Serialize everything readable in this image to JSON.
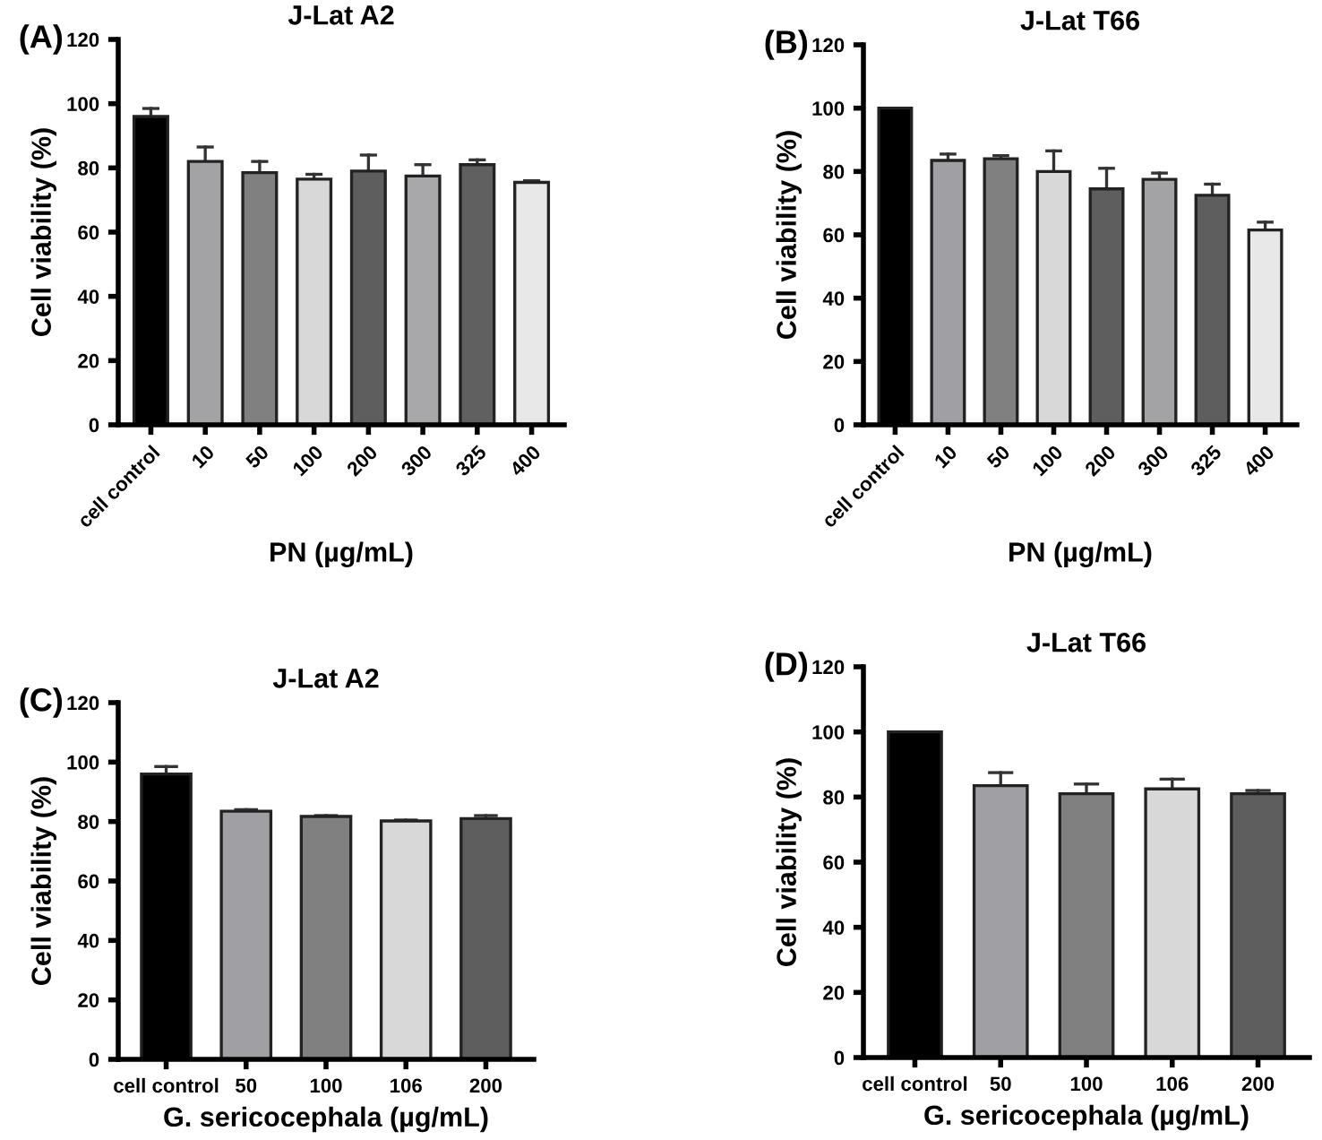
{
  "chart_data": [
    {
      "type": "bar",
      "title": "J-Lat A2",
      "xlabel": "PN (µg/mL)",
      "ylabel": "Cell viability (%)",
      "annotations": [
        "(A)"
      ],
      "categories": [
        "cell control",
        "10",
        "50",
        "100",
        "200",
        "300",
        "325",
        "400"
      ],
      "values": [
        96,
        82,
        78.5,
        76.5,
        79,
        77.5,
        81,
        75.5
      ],
      "errors": [
        [
          96,
          98.5
        ],
        [
          82,
          86.5
        ],
        [
          78.5,
          82
        ],
        [
          76.5,
          78
        ],
        [
          79,
          84
        ],
        [
          77.5,
          81
        ],
        [
          81,
          82.5
        ],
        [
          75.5,
          76
        ]
      ],
      "colors": [
        "#000000",
        "#a3a3a6",
        "#808080",
        "#d8d8d8",
        "#5e5e5e",
        "#a8a8ab",
        "#606060",
        "#e8e8e8"
      ],
      "ylim": [
        0,
        120
      ],
      "yticks": [
        0,
        20,
        40,
        60,
        80,
        100,
        120
      ],
      "grid": false
    },
    {
      "type": "bar",
      "title": "J-Lat T66",
      "xlabel": "PN (µg/mL)",
      "ylabel": "Cell viability (%)",
      "annotations": [
        "(B)"
      ],
      "categories": [
        "cell control",
        "10",
        "50",
        "100",
        "200",
        "300",
        "325",
        "400"
      ],
      "values": [
        100,
        83.5,
        84,
        80,
        74.5,
        77.5,
        72.5,
        61.5
      ],
      "errors": [
        null,
        [
          83.5,
          85.5
        ],
        [
          84,
          85
        ],
        [
          80,
          86.5
        ],
        [
          74.5,
          81
        ],
        [
          77.5,
          79.5
        ],
        [
          72.5,
          76
        ],
        [
          61.5,
          64
        ]
      ],
      "colors": [
        "#000000",
        "#a0a0a4",
        "#808080",
        "#d8d8d8",
        "#5e5e5e",
        "#a3a3a6",
        "#5e5e5e",
        "#e8e8e8"
      ],
      "ylim": [
        0,
        120
      ],
      "yticks": [
        0,
        20,
        40,
        60,
        80,
        100,
        120
      ],
      "grid": false
    },
    {
      "type": "bar",
      "title": "J-Lat A2",
      "xlabel": "G. sericocephala (µg/mL)",
      "ylabel": "Cell viability (%)",
      "annotations": [
        "(C)"
      ],
      "categories": [
        "cell control",
        "50",
        "100",
        "106",
        "200"
      ],
      "values": [
        96,
        83.5,
        81.7,
        80.2,
        81
      ],
      "errors": [
        [
          96,
          98.5
        ],
        [
          83.5,
          84
        ],
        [
          81.7,
          82
        ],
        [
          80.2,
          80.5
        ],
        [
          81,
          82
        ]
      ],
      "colors": [
        "#000000",
        "#a0a0a4",
        "#808080",
        "#d8d8d8",
        "#5e5e5e"
      ],
      "ylim": [
        0,
        120
      ],
      "yticks": [
        0,
        20,
        40,
        60,
        80,
        100,
        120
      ],
      "grid": false
    },
    {
      "type": "bar",
      "title": "J-Lat T66",
      "xlabel": "G. sericocephala (µg/mL)",
      "ylabel": "Cell viability (%)",
      "annotations": [
        "(D)"
      ],
      "categories": [
        "cell control",
        "50",
        "100",
        "106",
        "200"
      ],
      "values": [
        100,
        83.5,
        81,
        82.5,
        81
      ],
      "errors": [
        null,
        [
          83.5,
          87.5
        ],
        [
          81,
          84
        ],
        [
          82.5,
          85.5
        ],
        [
          81,
          82
        ]
      ],
      "colors": [
        "#000000",
        "#a0a0a4",
        "#808080",
        "#d8d8d8",
        "#5e5e5e"
      ],
      "ylim": [
        0,
        120
      ],
      "yticks": [
        0,
        20,
        40,
        60,
        80,
        100,
        120
      ],
      "grid": false
    }
  ]
}
